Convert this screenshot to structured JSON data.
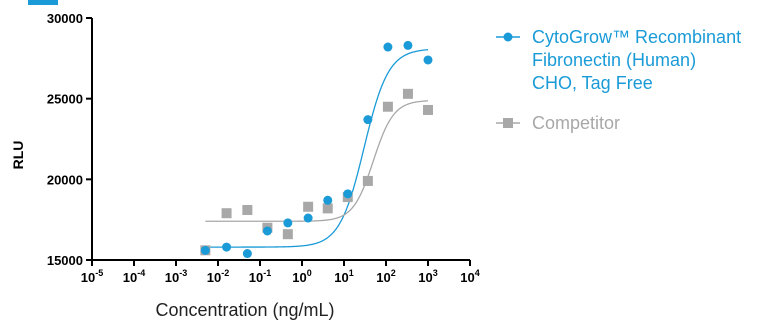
{
  "chart_data": {
    "type": "scatter",
    "xlabel": "Concentration (ng/mL)",
    "ylabel": "RLU",
    "xscale": "log",
    "xlim": [
      1e-05,
      10000
    ],
    "ylim": [
      15000,
      30000
    ],
    "x_tick_labels": [
      {
        "base": "10",
        "exp": "-5"
      },
      {
        "base": "10",
        "exp": "-4"
      },
      {
        "base": "10",
        "exp": "-3"
      },
      {
        "base": "10",
        "exp": "-2"
      },
      {
        "base": "10",
        "exp": "-1"
      },
      {
        "base": "10",
        "exp": "0"
      },
      {
        "base": "10",
        "exp": "1"
      },
      {
        "base": "10",
        "exp": "2"
      },
      {
        "base": "10",
        "exp": "3"
      },
      {
        "base": "10",
        "exp": "4"
      }
    ],
    "y_ticks": [
      15000,
      20000,
      25000,
      30000
    ],
    "y_tick_labels": [
      "15000",
      "20000",
      "25000",
      "30000"
    ],
    "legend_position": "right",
    "series": [
      {
        "name": "CytoGrow™ Recombinant Fibronectin (Human) CHO, Tag Free",
        "name_lines": [
          "CytoGrow™ Recombinant",
          "Fibronectin (Human)",
          "CHO, Tag Free"
        ],
        "color": "#1a9bd7",
        "marker": "circle",
        "x": [
          0.005,
          0.016,
          0.05,
          0.15,
          0.46,
          1.4,
          4.1,
          12.3,
          37,
          111,
          333,
          1000
        ],
        "y": [
          15600,
          15800,
          15400,
          16800,
          17300,
          17600,
          18700,
          19100,
          23700,
          28200,
          28300,
          27400
        ],
        "fit": {
          "bottom": 15800,
          "top": 28100,
          "ec50": 30,
          "hill": 1.5
        }
      },
      {
        "name": "Competitor",
        "name_lines": [
          "Competitor"
        ],
        "color": "#a8a8a8",
        "marker": "square",
        "x": [
          0.005,
          0.016,
          0.05,
          0.15,
          0.46,
          1.4,
          4.1,
          12.3,
          37,
          111,
          333,
          1000
        ],
        "y": [
          15600,
          17900,
          18100,
          17000,
          16600,
          18300,
          18200,
          18900,
          19900,
          24500,
          25300,
          24300
        ],
        "fit": {
          "bottom": 17400,
          "top": 24900,
          "ec50": 50,
          "hill": 1.8
        }
      }
    ]
  }
}
